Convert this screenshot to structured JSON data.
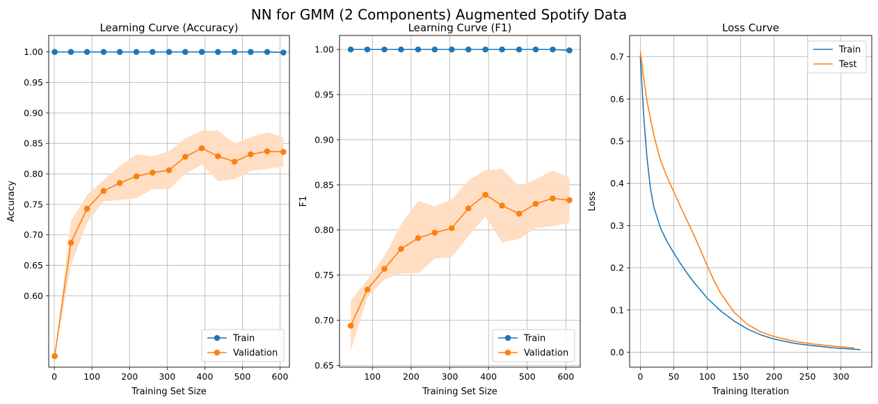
{
  "figure": {
    "suptitle": "NN for GMM (2 Components) Augmented Spotify Data"
  },
  "colors": {
    "train": "#1f77b4",
    "validation": "#ff7f0e",
    "band": "#ffdcc0",
    "grid": "#b0b0b0"
  },
  "chart_data": [
    {
      "type": "line",
      "title": "Learning Curve (Accuracy)",
      "xlabel": "Training Set Size",
      "ylabel": "Accuracy",
      "xlim": [
        -15,
        625
      ],
      "ylim": [
        0.483,
        1.027
      ],
      "xticks": [
        0,
        100,
        200,
        300,
        400,
        500,
        600
      ],
      "yticks": [
        0.6,
        0.65,
        0.7,
        0.75,
        0.8,
        0.85,
        0.9,
        0.95,
        1.0
      ],
      "grid": true,
      "legend": "lower-right",
      "x": [
        1,
        44,
        87,
        131,
        174,
        218,
        261,
        305,
        348,
        392,
        435,
        479,
        522,
        566,
        609
      ],
      "series": [
        {
          "name": "Train",
          "color": "#1f77b4",
          "marker": "o",
          "values": [
            1.0,
            1.0,
            1.0,
            1.0,
            1.0,
            1.0,
            1.0,
            1.0,
            1.0,
            1.0,
            1.0,
            1.0,
            1.0,
            1.0,
            0.999
          ]
        },
        {
          "name": "Validation",
          "color": "#ff7f0e",
          "marker": "o",
          "values": [
            0.501,
            0.687,
            0.743,
            0.772,
            0.785,
            0.796,
            0.802,
            0.806,
            0.828,
            0.842,
            0.829,
            0.82,
            0.832,
            0.837,
            0.836
          ],
          "band_lower": [
            0.501,
            0.65,
            0.72,
            0.755,
            0.757,
            0.76,
            0.775,
            0.775,
            0.8,
            0.815,
            0.788,
            0.791,
            0.805,
            0.808,
            0.812
          ],
          "band_upper": [
            0.501,
            0.723,
            0.765,
            0.79,
            0.813,
            0.832,
            0.829,
            0.837,
            0.858,
            0.871,
            0.871,
            0.85,
            0.86,
            0.868,
            0.86
          ]
        }
      ]
    },
    {
      "type": "line",
      "title": "Learning Curve (F1)",
      "xlabel": "Training Set Size",
      "ylabel": "F1",
      "xlim": [
        15,
        637
      ],
      "ylim": [
        0.648,
        1.0155
      ],
      "xticks": [
        100,
        200,
        300,
        400,
        500,
        600
      ],
      "yticks": [
        0.65,
        0.7,
        0.75,
        0.8,
        0.85,
        0.9,
        0.95,
        1.0
      ],
      "grid": true,
      "legend": "lower-right",
      "x": [
        44,
        87,
        131,
        174,
        218,
        261,
        305,
        348,
        392,
        435,
        479,
        522,
        566,
        609
      ],
      "series": [
        {
          "name": "Train",
          "color": "#1f77b4",
          "marker": "o",
          "values": [
            1.0,
            1.0,
            1.0,
            1.0,
            1.0,
            1.0,
            1.0,
            1.0,
            1.0,
            1.0,
            1.0,
            1.0,
            1.0,
            0.999
          ]
        },
        {
          "name": "Validation",
          "color": "#ff7f0e",
          "marker": "o",
          "values": [
            0.694,
            0.734,
            0.757,
            0.779,
            0.791,
            0.797,
            0.802,
            0.824,
            0.839,
            0.827,
            0.818,
            0.829,
            0.835,
            0.833
          ],
          "band_lower": [
            0.666,
            0.725,
            0.745,
            0.752,
            0.752,
            0.768,
            0.77,
            0.793,
            0.815,
            0.786,
            0.79,
            0.802,
            0.804,
            0.808
          ],
          "band_upper": [
            0.722,
            0.745,
            0.771,
            0.806,
            0.832,
            0.826,
            0.834,
            0.855,
            0.866,
            0.868,
            0.848,
            0.856,
            0.866,
            0.858
          ]
        }
      ]
    },
    {
      "type": "line",
      "title": "Loss Curve",
      "xlabel": "Training Iteration",
      "ylabel": "Loss",
      "xlim": [
        -16,
        346
      ],
      "ylim": [
        -0.0355,
        0.7505
      ],
      "xticks": [
        0,
        50,
        100,
        150,
        200,
        250,
        300
      ],
      "yticks": [
        0.0,
        0.1,
        0.2,
        0.3,
        0.4,
        0.5,
        0.6,
        0.7
      ],
      "grid": true,
      "legend": "upper-right",
      "series": [
        {
          "name": "Train",
          "color": "#1f77b4",
          "x": [
            0,
            5,
            10,
            15,
            20,
            30,
            40,
            50,
            60,
            70,
            80,
            90,
            100,
            120,
            140,
            160,
            180,
            200,
            230,
            260,
            290,
            310,
            329
          ],
          "values": [
            0.7,
            0.56,
            0.46,
            0.39,
            0.345,
            0.295,
            0.262,
            0.235,
            0.21,
            0.187,
            0.166,
            0.147,
            0.128,
            0.098,
            0.074,
            0.055,
            0.041,
            0.031,
            0.021,
            0.015,
            0.01,
            0.008,
            0.006
          ]
        },
        {
          "name": "Test",
          "color": "#ff7f0e",
          "x": [
            0,
            5,
            10,
            20,
            30,
            40,
            50,
            60,
            70,
            80,
            90,
            100,
            110,
            120,
            140,
            160,
            180,
            200,
            230,
            260,
            290,
            320
          ],
          "values": [
            0.713,
            0.65,
            0.595,
            0.515,
            0.455,
            0.415,
            0.38,
            0.345,
            0.312,
            0.278,
            0.242,
            0.205,
            0.17,
            0.14,
            0.095,
            0.066,
            0.048,
            0.037,
            0.026,
            0.019,
            0.014,
            0.01
          ]
        }
      ]
    }
  ]
}
